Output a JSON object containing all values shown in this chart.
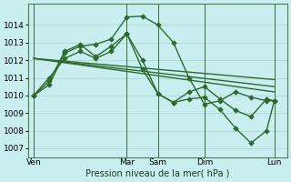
{
  "bg_color": "#c8eef0",
  "grid_color": "#b0d8d0",
  "line_color": "#2d6a2d",
  "xlabel_text": "Pression niveau de la mer( hPa )",
  "ylim": [
    1006.5,
    1015.2
  ],
  "yticks": [
    1007,
    1008,
    1009,
    1010,
    1011,
    1012,
    1013,
    1014
  ],
  "xlim": [
    0,
    100
  ],
  "xtick_labels": [
    "Ven",
    "Mar",
    "Sam",
    "Dim",
    "Lun"
  ],
  "xtick_positions": [
    2,
    38,
    50,
    68,
    95
  ],
  "vline_positions": [
    2,
    38,
    50,
    68,
    95
  ],
  "line_zigzag1": {
    "x": [
      2,
      8,
      14,
      20,
      26,
      32,
      38,
      44,
      50,
      56,
      62,
      68,
      74,
      80,
      86,
      92,
      95
    ],
    "y": [
      1010.0,
      1010.6,
      1012.4,
      1012.8,
      1012.9,
      1013.2,
      1014.45,
      1014.5,
      1014.0,
      1013.0,
      1011.0,
      1009.5,
      1009.7,
      1010.2,
      1009.9,
      1009.7,
      1009.7
    ]
  },
  "line_zigzag2": {
    "x": [
      2,
      8,
      14,
      20,
      26,
      32,
      38,
      44,
      50,
      56,
      62,
      68,
      74,
      80,
      86,
      92,
      95
    ],
    "y": [
      1010.0,
      1010.8,
      1012.5,
      1012.9,
      1012.2,
      1012.8,
      1013.5,
      1012.0,
      1010.1,
      1009.6,
      1010.2,
      1010.5,
      1009.8,
      1009.15,
      1008.8,
      1009.8,
      1009.7
    ]
  },
  "line_zigzag3": {
    "x": [
      2,
      8,
      14,
      20,
      26,
      32,
      38,
      44,
      50,
      56,
      62,
      68,
      74,
      80,
      86,
      92,
      95
    ],
    "y": [
      1010.0,
      1011.0,
      1012.1,
      1012.5,
      1012.1,
      1012.5,
      1013.5,
      1011.5,
      1010.1,
      1009.6,
      1009.8,
      1009.9,
      1009.2,
      1008.15,
      1007.3,
      1008.0,
      1009.7
    ]
  },
  "line_straight1": {
    "x": [
      2,
      95
    ],
    "y": [
      1012.1,
      1010.9
    ]
  },
  "line_straight2": {
    "x": [
      2,
      95
    ],
    "y": [
      1012.1,
      1010.5
    ]
  },
  "line_straight3": {
    "x": [
      2,
      95
    ],
    "y": [
      1012.1,
      1010.2
    ]
  },
  "marker_size": 2.8,
  "linewidth": 1.0
}
